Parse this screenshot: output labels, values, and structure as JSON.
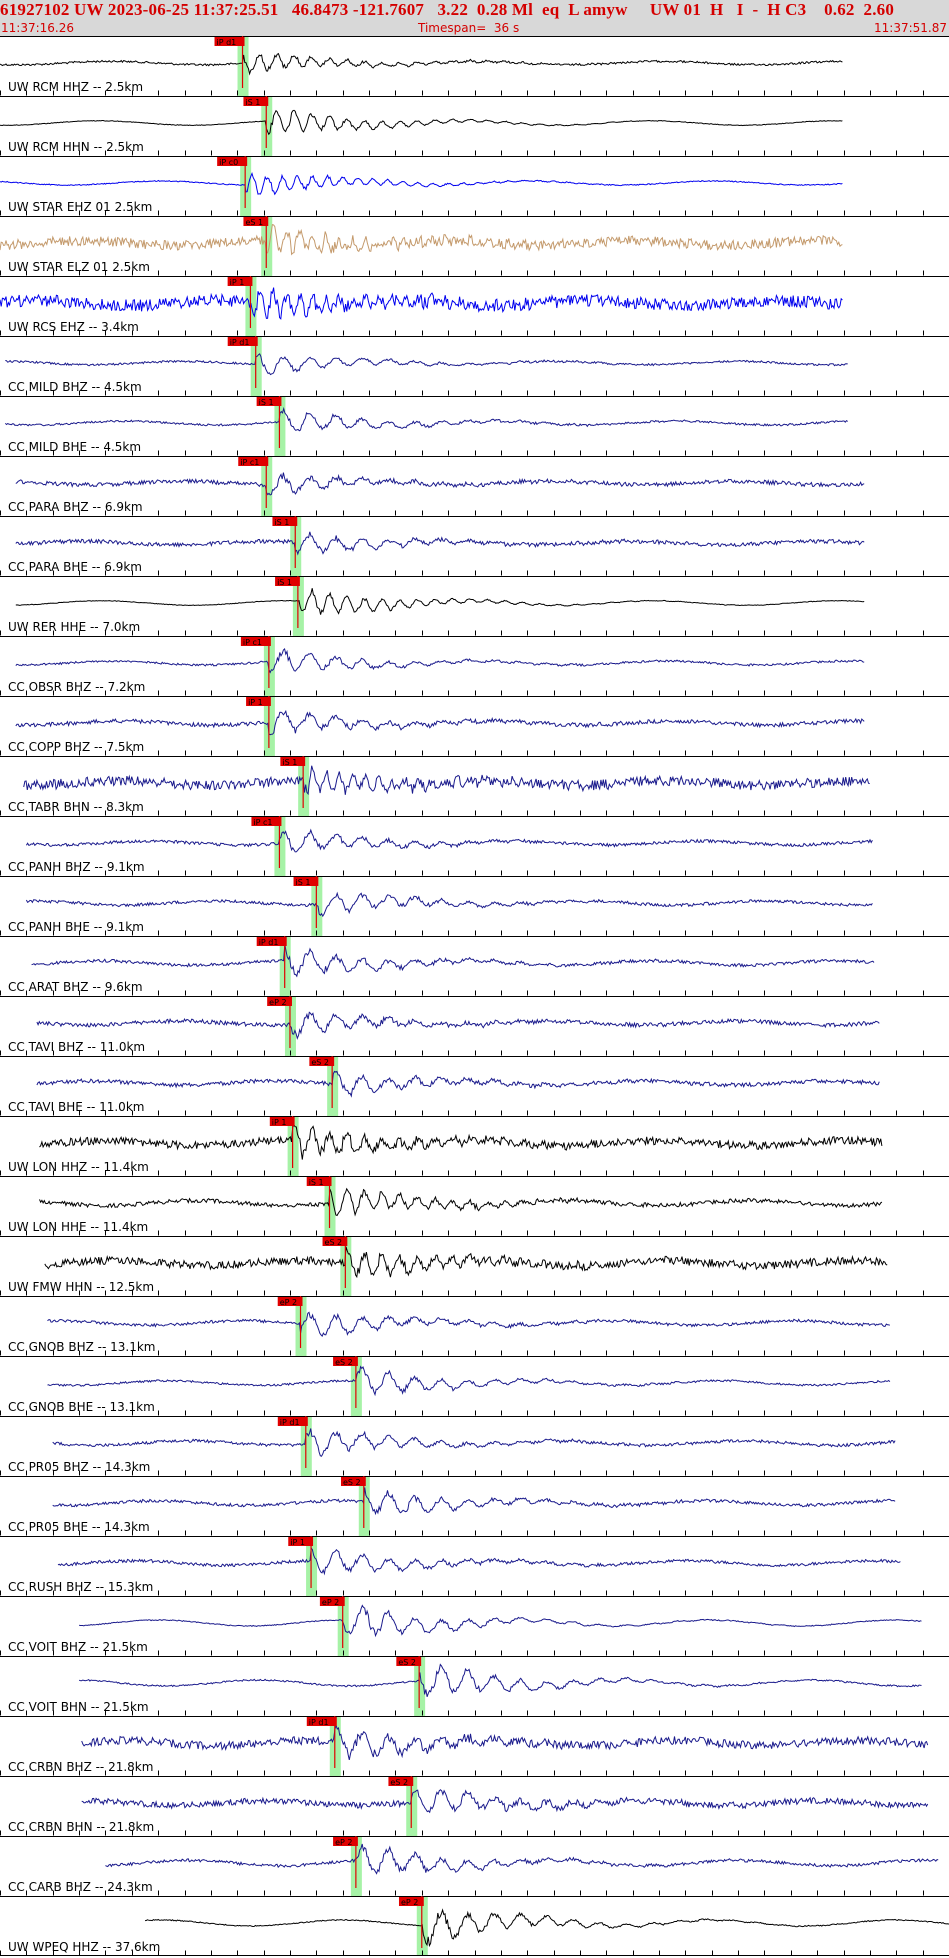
{
  "header": {
    "title": "61927102 UW 2023-06-25 11:37:25.51   46.8473 -121.7607   3.22  0.28 Ml  eq  L amyw     UW 01  H   I  -  H C3    0.62  2.60",
    "start_time": "11:37:16.26",
    "timespan": "Timespan=  36 s",
    "end_time": "11:37:51.87"
  },
  "colors": {
    "header_bg": "#d8d8d8",
    "header_text": "#d40000",
    "pick_fill": "#e00000",
    "pick_window": "#96f096",
    "trace_black": "#000000",
    "trace_blue": "#0000ee",
    "trace_navy": "#1a1a8c",
    "trace_tan": "#c49a6c"
  },
  "chart_data": {
    "type": "line",
    "x_unit": "s",
    "x_start": "11:37:16.26",
    "x_end": "11:37:51.87",
    "timespan_s": 36,
    "tick_interval_s": 1,
    "traces": [
      {
        "label": "UW RCM HHZ -- 2.5km",
        "color": "black",
        "amp": 7,
        "noise": 1,
        "freq": 6,
        "pick": {
          "label": "iP d1",
          "t": 9.2
        },
        "start_s": 0,
        "end_s": 32
      },
      {
        "label": "UW RCM HHN -- 2.5km",
        "color": "black",
        "amp": 9,
        "noise": 0.3,
        "freq": 6,
        "pick": {
          "label": "iS 1",
          "t": 10.1
        },
        "start_s": 0,
        "end_s": 32
      },
      {
        "label": "UW STAR EHZ 01 2.5km",
        "color": "blue",
        "amp": 8,
        "noise": 0.5,
        "freq": 7,
        "pick": {
          "label": "iP c0",
          "t": 9.3
        },
        "start_s": 0,
        "end_s": 32
      },
      {
        "label": "UW STAR ELZ 01 2.5km",
        "color": "tan",
        "amp": 9,
        "noise": 5,
        "freq": 8,
        "pick": {
          "label": "eS 1",
          "t": 10.1
        },
        "start_s": 0,
        "end_s": 32
      },
      {
        "label": "UW RCS EHZ -- 3.4km",
        "color": "blue",
        "amp": 10,
        "noise": 6,
        "freq": 8,
        "pick": {
          "label": "iP 1",
          "t": 9.5
        },
        "start_s": 0,
        "end_s": 32
      },
      {
        "label": "CC MILD BHZ -- 4.5km",
        "color": "navy",
        "amp": 7,
        "noise": 1,
        "freq": 4,
        "pick": {
          "label": "iP d1",
          "t": 9.7
        },
        "start_s": 0.2,
        "end_s": 32.2
      },
      {
        "label": "CC MILD BHE -- 4.5km",
        "color": "navy",
        "amp": 8,
        "noise": 1,
        "freq": 4,
        "pick": {
          "label": "iS 1",
          "t": 10.6
        },
        "start_s": 0.2,
        "end_s": 32.2
      },
      {
        "label": "CC PARA BHZ -- 6.9km",
        "color": "navy",
        "amp": 7,
        "noise": 2,
        "freq": 4,
        "pick": {
          "label": "iP c1",
          "t": 10.1
        },
        "start_s": 0.6,
        "end_s": 32.8
      },
      {
        "label": "CC PARA BHE -- 6.9km",
        "color": "navy",
        "amp": 7,
        "noise": 2,
        "freq": 4,
        "pick": {
          "label": "iS 1",
          "t": 11.2
        },
        "start_s": 0.6,
        "end_s": 32.8
      },
      {
        "label": "UW RER HHE -- 7.0km",
        "color": "black",
        "amp": 9,
        "noise": 0.3,
        "freq": 6,
        "pick": {
          "label": "iS 1",
          "t": 11.3
        },
        "start_s": 0.6,
        "end_s": 32.8
      },
      {
        "label": "CC OBSR BHZ -- 7.2km",
        "color": "navy",
        "amp": 8,
        "noise": 1,
        "freq": 4,
        "pick": {
          "label": "iP c1",
          "t": 10.2
        },
        "start_s": 0.6,
        "end_s": 32.8
      },
      {
        "label": "CC COPP BHZ -- 7.5km",
        "color": "navy",
        "amp": 8,
        "noise": 2,
        "freq": 4,
        "pick": {
          "label": "iP 1",
          "t": 10.2
        },
        "start_s": 0.6,
        "end_s": 32.8
      },
      {
        "label": "CC TABR BHN -- 8.3km",
        "color": "navy",
        "amp": 9,
        "noise": 5,
        "freq": 8,
        "pick": {
          "label": "iS 1",
          "t": 11.5
        },
        "start_s": 0.9,
        "end_s": 33
      },
      {
        "label": "CC PANH BHZ -- 9.1km",
        "color": "navy",
        "amp": 8,
        "noise": 1.5,
        "freq": 4,
        "pick": {
          "label": "iP c1",
          "t": 10.6
        },
        "start_s": 1,
        "end_s": 33.1
      },
      {
        "label": "CC PANH BHE -- 9.1km",
        "color": "navy",
        "amp": 8,
        "noise": 1.5,
        "freq": 4,
        "pick": {
          "label": "iS 1",
          "t": 12
        },
        "start_s": 1,
        "end_s": 33.1
      },
      {
        "label": "CC ARAT BHZ -- 9.6km",
        "color": "navy",
        "amp": 9,
        "noise": 1.5,
        "freq": 4,
        "pick": {
          "label": "iP d1",
          "t": 10.8
        },
        "start_s": 1.2,
        "end_s": 33.2
      },
      {
        "label": "CC TAVI BHZ -- 11.0km",
        "color": "navy",
        "amp": 8,
        "noise": 2,
        "freq": 4,
        "pick": {
          "label": "eP 2",
          "t": 11
        },
        "start_s": 1.4,
        "end_s": 33.4
      },
      {
        "label": "CC TAVI BHE -- 11.0km",
        "color": "navy",
        "amp": 8,
        "noise": 2,
        "freq": 4,
        "pick": {
          "label": "eS 2",
          "t": 12.6
        },
        "start_s": 1.4,
        "end_s": 33.4
      },
      {
        "label": "UW LON HHZ -- 11.4km",
        "color": "black",
        "amp": 10,
        "noise": 4,
        "freq": 6,
        "pick": {
          "label": "iP 1",
          "t": 11.1
        },
        "start_s": 1.5,
        "end_s": 33.5
      },
      {
        "label": "UW LON HHE -- 11.4km",
        "color": "black",
        "amp": 10,
        "noise": 2,
        "freq": 6,
        "pick": {
          "label": "iS 1",
          "t": 12.5
        },
        "start_s": 1.5,
        "end_s": 33.5
      },
      {
        "label": "UW FMW HHN -- 12.5km",
        "color": "black",
        "amp": 10,
        "noise": 4,
        "freq": 6,
        "pick": {
          "label": "eS 2",
          "t": 13.1
        },
        "start_s": 1.7,
        "end_s": 33.7
      },
      {
        "label": "CC GNOB BHZ -- 13.1km",
        "color": "navy",
        "amp": 9,
        "noise": 1.5,
        "freq": 4,
        "pick": {
          "label": "eP 2",
          "t": 11.4
        },
        "start_s": 1.8,
        "end_s": 33.8
      },
      {
        "label": "CC GNOB BHE -- 13.1km",
        "color": "navy",
        "amp": 9,
        "noise": 1,
        "freq": 4,
        "pick": {
          "label": "eS 2",
          "t": 13.5
        },
        "start_s": 1.8,
        "end_s": 33.8
      },
      {
        "label": "CC PR05 BHZ -- 14.3km",
        "color": "navy",
        "amp": 9,
        "noise": 1.5,
        "freq": 4,
        "pick": {
          "label": "iP d1",
          "t": 11.6
        },
        "start_s": 2,
        "end_s": 34
      },
      {
        "label": "CC PR05 BHE -- 14.3km",
        "color": "navy",
        "amp": 9,
        "noise": 1.5,
        "freq": 4,
        "pick": {
          "label": "eS 2",
          "t": 13.8
        },
        "start_s": 2,
        "end_s": 34
      },
      {
        "label": "CC RUSH BHZ -- 15.3km",
        "color": "navy",
        "amp": 9,
        "noise": 1.5,
        "freq": 4,
        "pick": {
          "label": "iP 1",
          "t": 11.8
        },
        "start_s": 2.2,
        "end_s": 34.2
      },
      {
        "label": "CC VOIT BHZ -- 21.5km",
        "color": "navy",
        "amp": 12,
        "noise": 0.5,
        "freq": 4,
        "pick": {
          "label": "eP 2",
          "t": 13
        },
        "start_s": 3,
        "end_s": 35
      },
      {
        "label": "CC VOIT BHN -- 21.5km",
        "color": "navy",
        "amp": 12,
        "noise": 0.8,
        "freq": 4,
        "pick": {
          "label": "eS 2",
          "t": 15.9
        },
        "start_s": 3,
        "end_s": 35
      },
      {
        "label": "CC CRBN BHZ -- 21.8km",
        "color": "navy",
        "amp": 10,
        "noise": 4,
        "freq": 4,
        "pick": {
          "label": "iP d1",
          "t": 12.7
        },
        "start_s": 3.1,
        "end_s": 35.2
      },
      {
        "label": "CC CRBN BHN -- 21.8km",
        "color": "navy",
        "amp": 9,
        "noise": 3,
        "freq": 4,
        "pick": {
          "label": "eS 2",
          "t": 15.6
        },
        "start_s": 3.1,
        "end_s": 35.2
      },
      {
        "label": "CC CARB BHZ -- 24.3km",
        "color": "navy",
        "amp": 11,
        "noise": 1.5,
        "freq": 4,
        "pick": {
          "label": "eP 2",
          "t": 13.5
        },
        "start_s": 4,
        "end_s": 35.6
      },
      {
        "label": "UW WPEQ HHZ -- 37.6km",
        "color": "black",
        "amp": 12,
        "noise": 0.5,
        "freq": 4,
        "pick": {
          "label": "eP 2",
          "t": 16
        },
        "start_s": 5.5,
        "end_s": 36
      }
    ]
  }
}
